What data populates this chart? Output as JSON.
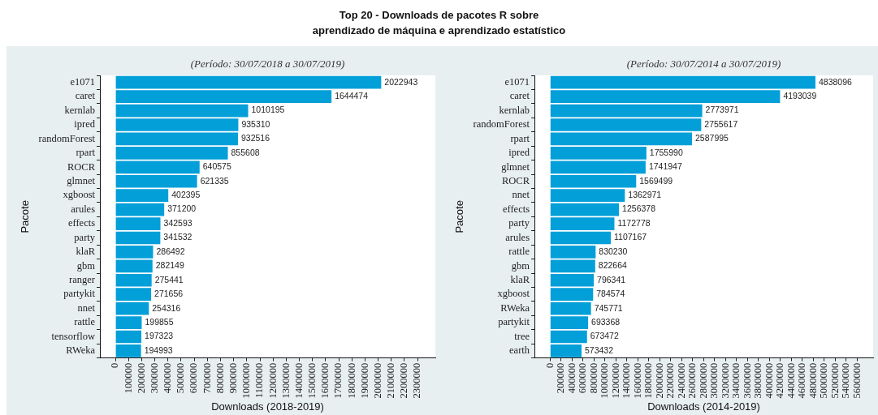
{
  "chart_data": [
    {
      "type": "bar",
      "orientation": "horizontal",
      "title": "Top 20 - Downloads de pacotes R sobre\naprendizado de máquina e aprendizado estatístico",
      "subtitle": "(Período: 30/07/2018 a 30/07/2019)",
      "xlabel": "Downloads (2018-2019)",
      "ylabel": "Pacote",
      "categories": [
        "e1071",
        "caret",
        "kernlab",
        "ipred",
        "randomForest",
        "rpart",
        "ROCR",
        "glmnet",
        "xgboost",
        "arules",
        "effects",
        "party",
        "klaR",
        "gbm",
        "ranger",
        "partykit",
        "nnet",
        "rattle",
        "tensorflow",
        "RWeka"
      ],
      "values": [
        2022943,
        1644474,
        1010195,
        935310,
        932516,
        855608,
        640575,
        621335,
        402395,
        371200,
        342593,
        341532,
        286492,
        282149,
        275441,
        271656,
        254316,
        199855,
        197323,
        194993
      ],
      "color": "#039fd9",
      "xlim": [
        -118000,
        2435000
      ],
      "xticks": [
        0,
        100000,
        200000,
        300000,
        400000,
        500000,
        600000,
        700000,
        800000,
        900000,
        1000000,
        1100000,
        1200000,
        1300000,
        1400000,
        1500000,
        1600000,
        1700000,
        1800000,
        1900000,
        2000000,
        2100000,
        2200000,
        2300000
      ],
      "data_labels": true
    },
    {
      "type": "bar",
      "orientation": "horizontal",
      "subtitle": "(Período: 30/07/2014 a 30/07/2019)",
      "xlabel": "Downloads (2014-2019)",
      "ylabel": "Pacote",
      "categories": [
        "e1071",
        "caret",
        "kernlab",
        "randomForest",
        "rpart",
        "ipred",
        "glmnet",
        "ROCR",
        "nnet",
        "effects",
        "party",
        "arules",
        "rattle",
        "gbm",
        "klaR",
        "xgboost",
        "RWeka",
        "partykit",
        "tree",
        "earth"
      ],
      "values": [
        4838096,
        4193039,
        2773971,
        2755617,
        2587995,
        1755990,
        1741947,
        1569499,
        1362971,
        1256378,
        1172778,
        1107167,
        830230,
        822664,
        796341,
        784574,
        745771,
        693368,
        673472,
        573432
      ],
      "color": "#039fd9",
      "xlim": [
        -285000,
        5890000
      ],
      "xticks": [
        0,
        200000,
        400000,
        600000,
        800000,
        1000000,
        1200000,
        1400000,
        1600000,
        1800000,
        2000000,
        2200000,
        2400000,
        2600000,
        2800000,
        3000000,
        3200000,
        3400000,
        3600000,
        3800000,
        4000000,
        4200000,
        4400000,
        4600000,
        4800000,
        5000000,
        5200000,
        5400000,
        5600000
      ],
      "data_labels": true
    }
  ]
}
